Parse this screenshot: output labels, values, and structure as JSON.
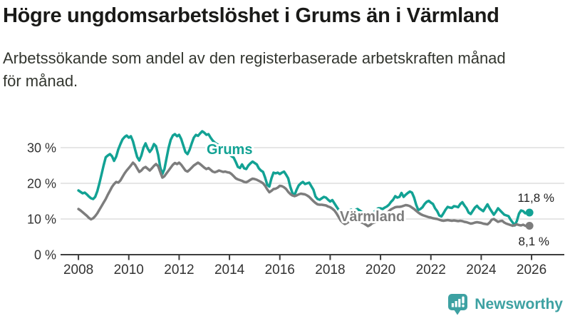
{
  "header": {
    "title": "Högre ungdomsarbetslöshet i Grums än i Värmland",
    "subtitle_line1": "Arbetssökande som andel av den registerbaserade arbetskraften månad",
    "subtitle_line2": "för månad."
  },
  "branding": {
    "name": "Newsworthy",
    "color": "#3da1a2",
    "icon": "bar-chart-speech-bubble-icon"
  },
  "chart_data": {
    "type": "line",
    "title": "Högre ungdomsarbetslöshet i Grums än i Värmland",
    "subtitle": "Arbetssökande som andel av den registerbaserade arbetskraften månad för månad.",
    "unit": "%",
    "grid": "horizontal",
    "legend_position": "inline-labels",
    "x_axis": {
      "tick_years": [
        2008,
        2010,
        2012,
        2014,
        2016,
        2018,
        2020,
        2022,
        2024,
        2026
      ],
      "lim": [
        2007.29,
        2027.3
      ]
    },
    "y_axis": {
      "ticks": [
        {
          "value": 0,
          "label": "0 %"
        },
        {
          "value": 10,
          "label": "10 %"
        },
        {
          "value": 20,
          "label": "20 %"
        },
        {
          "value": 30,
          "label": "30 %"
        }
      ],
      "lim": [
        0,
        38.4
      ]
    },
    "sampling": {
      "start_year": 2008,
      "points_per_year": 12,
      "end_year_approx": 2025.92
    },
    "series": [
      {
        "name": "Grums",
        "color": "#12a294",
        "end_label": "11,8 %",
        "end_value": 11.8,
        "values": [
          18.0,
          17.6,
          17.2,
          17.4,
          16.9,
          16.3,
          15.8,
          15.6,
          16.2,
          17.8,
          20.0,
          22.5,
          25.0,
          27.3,
          27.8,
          28.2,
          27.6,
          26.3,
          27.5,
          29.5,
          31.0,
          32.3,
          33.0,
          33.4,
          32.8,
          33.2,
          31.8,
          29.5,
          27.4,
          26.4,
          27.8,
          30.0,
          31.2,
          29.8,
          28.8,
          29.6,
          31.0,
          30.4,
          28.0,
          24.5,
          22.6,
          24.0,
          27.0,
          30.0,
          32.2,
          33.4,
          33.8,
          33.2,
          33.6,
          32.4,
          30.6,
          28.8,
          28.2,
          29.4,
          31.2,
          32.8,
          33.6,
          33.3,
          34.0,
          34.6,
          34.2,
          33.6,
          33.8,
          32.8,
          32.0,
          31.4,
          31.0,
          30.6,
          30.2,
          29.8,
          29.6,
          28.6,
          28.1,
          27.6,
          27.2,
          26.0,
          24.6,
          24.3,
          25.3,
          24.2,
          24.0,
          25.0,
          25.6,
          26.1,
          25.7,
          25.3,
          24.2,
          23.6,
          23.2,
          21.6,
          19.6,
          19.1,
          21.4,
          23.0,
          22.8,
          23.0,
          22.6,
          23.0,
          23.3,
          22.4,
          21.4,
          19.0,
          17.3,
          16.7,
          18.2,
          19.4,
          20.0,
          20.4,
          19.8,
          20.0,
          20.2,
          19.2,
          18.2,
          16.3,
          15.6,
          15.4,
          15.8,
          16.2,
          16.0,
          15.4,
          14.9,
          15.3,
          14.4,
          13.5,
          12.6,
          11.4,
          10.7,
          10.3,
          11.4,
          12.4,
          12.6,
          12.2,
          12.5,
          12.8,
          12.4,
          12.0,
          11.7,
          11.4,
          11.2,
          11.0,
          11.4,
          12.0,
          12.6,
          13.0,
          13.0,
          12.8,
          13.2,
          13.5,
          14.0,
          14.8,
          15.4,
          16.4,
          16.0,
          16.2,
          17.3,
          16.2,
          16.8,
          17.3,
          17.7,
          17.4,
          16.0,
          14.0,
          12.5,
          12.8,
          13.3,
          14.2,
          14.8,
          15.1,
          14.6,
          14.2,
          13.0,
          12.2,
          11.0,
          10.7,
          11.6,
          12.6,
          13.4,
          13.2,
          13.1,
          13.6,
          13.5,
          13.3,
          14.2,
          14.7,
          13.8,
          13.0,
          11.8,
          11.4,
          12.3,
          13.2,
          13.7,
          13.0,
          12.6,
          12.2,
          13.2,
          14.1,
          13.0,
          12.1,
          11.2,
          12.0,
          13.0,
          12.4,
          11.8,
          11.2,
          11.0,
          10.8,
          9.8,
          9.0,
          8.2,
          9.5,
          11.5,
          12.4,
          12.2,
          11.6,
          11.9,
          11.8
        ]
      },
      {
        "name": "Värmland",
        "color": "#7d7d7d",
        "end_label": "8,1 %",
        "end_value": 8.1,
        "values": [
          12.8,
          12.4,
          11.9,
          11.4,
          10.9,
          10.3,
          9.9,
          10.2,
          10.8,
          11.6,
          12.6,
          13.6,
          14.6,
          15.6,
          16.8,
          17.9,
          19.0,
          19.8,
          20.4,
          20.2,
          20.8,
          21.8,
          22.8,
          23.6,
          24.3,
          25.0,
          25.8,
          25.2,
          24.2,
          23.2,
          23.6,
          24.3,
          24.6,
          24.1,
          23.6,
          24.2,
          24.9,
          25.4,
          24.8,
          23.2,
          21.6,
          22.0,
          22.8,
          23.6,
          24.4,
          25.2,
          25.7,
          25.4,
          25.8,
          25.2,
          24.4,
          23.6,
          23.3,
          23.8,
          24.4,
          25.0,
          25.4,
          25.8,
          25.4,
          24.9,
          24.4,
          24.0,
          24.3,
          23.8,
          23.3,
          23.1,
          23.3,
          23.6,
          23.4,
          23.2,
          23.3,
          23.1,
          23.0,
          22.6,
          22.0,
          21.4,
          21.1,
          20.9,
          20.7,
          20.4,
          20.3,
          20.6,
          21.0,
          21.3,
          21.2,
          21.0,
          20.7,
          20.4,
          20.0,
          19.3,
          18.3,
          17.5,
          17.9,
          18.4,
          18.5,
          18.8,
          19.3,
          19.2,
          18.9,
          18.4,
          17.6,
          17.0,
          16.6,
          16.4,
          16.6,
          16.9,
          17.1,
          17.0,
          16.9,
          16.6,
          16.2,
          15.6,
          15.0,
          14.5,
          14.1,
          14.0,
          14.0,
          13.9,
          13.8,
          13.5,
          13.3,
          12.9,
          12.4,
          11.6,
          10.6,
          9.6,
          9.0,
          8.6,
          8.9,
          9.3,
          9.6,
          9.4,
          9.3,
          9.4,
          9.2,
          9.0,
          8.8,
          8.4,
          8.0,
          8.3,
          8.8,
          9.0,
          9.2,
          9.6,
          10.0,
          10.3,
          10.8,
          11.5,
          12.2,
          12.7,
          13.0,
          13.3,
          13.4,
          13.4,
          13.5,
          13.7,
          13.9,
          13.8,
          13.6,
          13.2,
          12.8,
          12.3,
          11.8,
          11.4,
          11.1,
          10.9,
          10.7,
          10.5,
          10.4,
          10.2,
          10.1,
          10.0,
          9.8,
          9.6,
          9.5,
          9.6,
          9.7,
          9.6,
          9.5,
          9.6,
          9.5,
          9.4,
          9.5,
          9.4,
          9.2,
          9.1,
          8.9,
          8.7,
          8.8,
          9.0,
          9.1,
          9.0,
          8.9,
          8.7,
          8.6,
          8.5,
          9.0,
          9.8,
          10.0,
          9.6,
          9.2,
          9.4,
          9.5,
          9.0,
          8.7,
          8.5,
          8.3,
          8.1,
          8.3,
          8.5,
          8.3,
          8.2,
          8.4,
          8.1,
          7.9,
          8.1
        ]
      }
    ]
  }
}
